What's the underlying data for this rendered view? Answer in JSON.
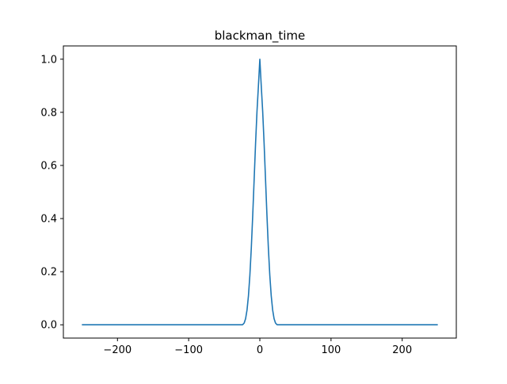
{
  "chart_data": {
    "type": "line",
    "title": "blackman_time",
    "xlabel": "",
    "ylabel": "",
    "xlim": [
      -276,
      276
    ],
    "ylim": [
      -0.05,
      1.05
    ],
    "xticks": [
      -200,
      -100,
      0,
      100,
      200
    ],
    "xtick_labels": [
      "−200",
      "−100",
      "0",
      "100",
      "200"
    ],
    "yticks": [
      0.0,
      0.2,
      0.4,
      0.6,
      0.8,
      1.0
    ],
    "ytick_labels": [
      "0.0",
      "0.2",
      "0.4",
      "0.6",
      "0.8",
      "1.0"
    ],
    "grid": false,
    "series": [
      {
        "color": "#1f77b4",
        "x": [
          -250,
          -200,
          -150,
          -100,
          -50,
          -26,
          -25,
          -24,
          -22,
          -20,
          -18,
          -16,
          -14,
          -12,
          -10,
          -8,
          -6,
          -4,
          -2,
          0,
          2,
          4,
          6,
          8,
          10,
          12,
          14,
          16,
          18,
          20,
          22,
          24,
          25,
          26,
          50,
          100,
          150,
          200,
          250
        ],
        "y": [
          0,
          0,
          0,
          0,
          0,
          0,
          0,
          0.0008,
          0.0066,
          0.0231,
          0.0558,
          0.109,
          0.1864,
          0.2883,
          0.4112,
          0.5467,
          0.6826,
          0.8035,
          0.8988,
          1.0,
          0.8988,
          0.8035,
          0.6826,
          0.5467,
          0.4112,
          0.2883,
          0.1864,
          0.109,
          0.0558,
          0.0231,
          0.0066,
          0.0008,
          0,
          0,
          0,
          0,
          0,
          0,
          0
        ]
      }
    ]
  }
}
